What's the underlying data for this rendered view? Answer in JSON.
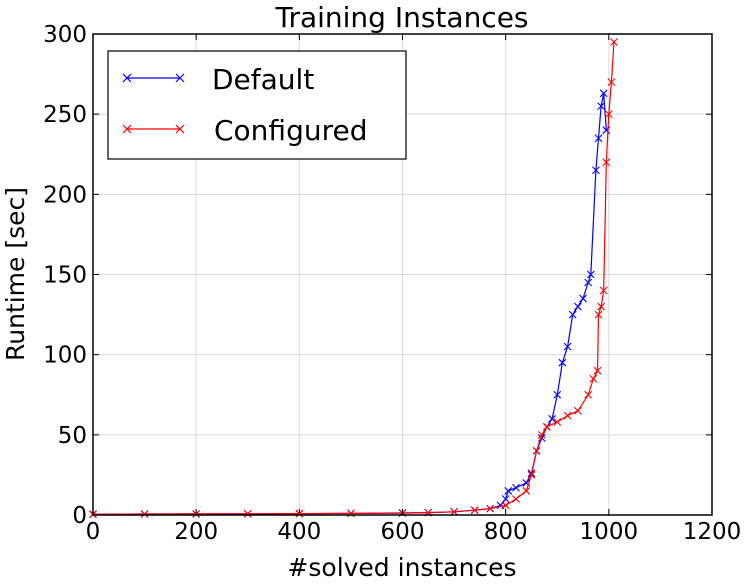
{
  "chart_data": {
    "type": "line",
    "title": "Training Instances",
    "xlabel": "#solved instances",
    "ylabel": "Runtime [sec]",
    "xlim": [
      0,
      1200
    ],
    "ylim": [
      0,
      300
    ],
    "xticks": [
      "0",
      "200",
      "400",
      "600",
      "800",
      "1000",
      "1200"
    ],
    "yticks": [
      "0",
      "50",
      "100",
      "150",
      "200",
      "250",
      "300"
    ],
    "grid": true,
    "legend_position": "top-left",
    "marker": "x",
    "series": [
      {
        "name": "Default",
        "color": "#0000ff",
        "points": [
          [
            0,
            0.5
          ],
          [
            100,
            0.6
          ],
          [
            200,
            0.6
          ],
          [
            300,
            0.7
          ],
          [
            400,
            0.8
          ],
          [
            500,
            1.0
          ],
          [
            600,
            1.2
          ],
          [
            650,
            1.5
          ],
          [
            700,
            2.0
          ],
          [
            740,
            3.0
          ],
          [
            770,
            4.0
          ],
          [
            790,
            6.0
          ],
          [
            800,
            10.0
          ],
          [
            805,
            15.0
          ],
          [
            820,
            17.0
          ],
          [
            840,
            20.0
          ],
          [
            850,
            26.0
          ],
          [
            860,
            40.0
          ],
          [
            870,
            48.0
          ],
          [
            880,
            55.0
          ],
          [
            890,
            60.0
          ],
          [
            900,
            75.0
          ],
          [
            910,
            95.0
          ],
          [
            920,
            105.0
          ],
          [
            930,
            125.0
          ],
          [
            940,
            130.0
          ],
          [
            950,
            135.0
          ],
          [
            960,
            145.0
          ],
          [
            965,
            150.0
          ],
          [
            975,
            215.0
          ],
          [
            980,
            235.0
          ],
          [
            985,
            255.0
          ],
          [
            990,
            263.0
          ],
          [
            995,
            240.0
          ]
        ]
      },
      {
        "name": "Configured",
        "color": "#ff0000",
        "points": [
          [
            0,
            0.5
          ],
          [
            100,
            0.6
          ],
          [
            200,
            0.7
          ],
          [
            300,
            0.8
          ],
          [
            400,
            0.9
          ],
          [
            500,
            1.0
          ],
          [
            600,
            1.3
          ],
          [
            650,
            1.5
          ],
          [
            700,
            2.0
          ],
          [
            740,
            3.0
          ],
          [
            770,
            4.0
          ],
          [
            800,
            6.0
          ],
          [
            820,
            10.0
          ],
          [
            840,
            15.0
          ],
          [
            850,
            25.0
          ],
          [
            860,
            40.0
          ],
          [
            870,
            50.0
          ],
          [
            880,
            55.0
          ],
          [
            900,
            58.0
          ],
          [
            920,
            62.0
          ],
          [
            940,
            65.0
          ],
          [
            960,
            75.0
          ],
          [
            970,
            85.0
          ],
          [
            978,
            90.0
          ],
          [
            980,
            125.0
          ],
          [
            985,
            130.0
          ],
          [
            990,
            140.0
          ],
          [
            995,
            220.0
          ],
          [
            1000,
            250.0
          ],
          [
            1005,
            270.0
          ],
          [
            1010,
            295.0
          ]
        ]
      }
    ]
  }
}
